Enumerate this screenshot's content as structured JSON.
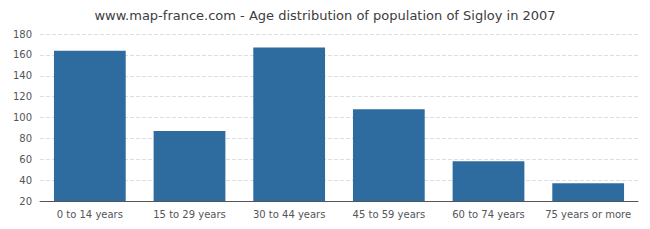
{
  "chart_data": {
    "type": "bar",
    "title": "www.map-france.com - Age distribution of population of Sigloy in 2007",
    "categories": [
      "0 to 14 years",
      "15 to 29 years",
      "30 to 44 years",
      "45 to 59 years",
      "60 to 74 years",
      "75 years or more"
    ],
    "values": [
      164,
      87,
      167,
      108,
      58,
      37
    ],
    "color": "#2e6b9e",
    "ylim": [
      20,
      180
    ],
    "yticks": [
      20,
      40,
      60,
      80,
      100,
      120,
      140,
      160,
      180
    ],
    "grid": true
  }
}
